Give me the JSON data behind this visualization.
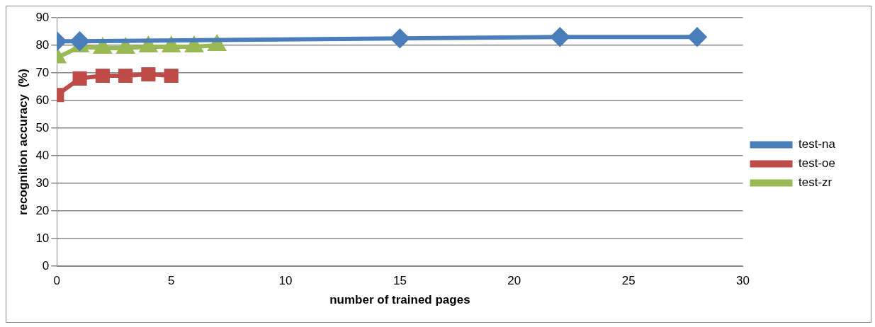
{
  "chart_data": {
    "type": "line",
    "xlabel": "number of trained pages",
    "ylabel": "recognition accuracy  (%)",
    "xlim": [
      0,
      30
    ],
    "xticks": [
      0,
      5,
      10,
      15,
      20,
      25,
      30
    ],
    "ylim": [
      0,
      90
    ],
    "yticks": [
      0,
      10,
      20,
      30,
      40,
      50,
      60,
      70,
      80,
      90
    ],
    "grid": "y",
    "legend": "right",
    "series": [
      {
        "name": "test-na",
        "color": "#4a7ebb",
        "marker": "diamond",
        "x": [
          0,
          1,
          15,
          22,
          28
        ],
        "values": [
          81.5,
          81.5,
          82.5,
          83,
          83
        ]
      },
      {
        "name": "test-oe",
        "color": "#be4b48",
        "marker": "square",
        "x": [
          0,
          1,
          2,
          3,
          4,
          5
        ],
        "values": [
          62,
          68,
          69,
          69,
          69.5,
          69
        ]
      },
      {
        "name": "test-zr",
        "color": "#98b954",
        "marker": "triangle",
        "x": [
          0,
          1,
          2,
          3,
          4,
          5,
          6,
          7
        ],
        "values": [
          75.5,
          79.5,
          79,
          79,
          79.5,
          79.5,
          79.5,
          80
        ]
      }
    ]
  }
}
